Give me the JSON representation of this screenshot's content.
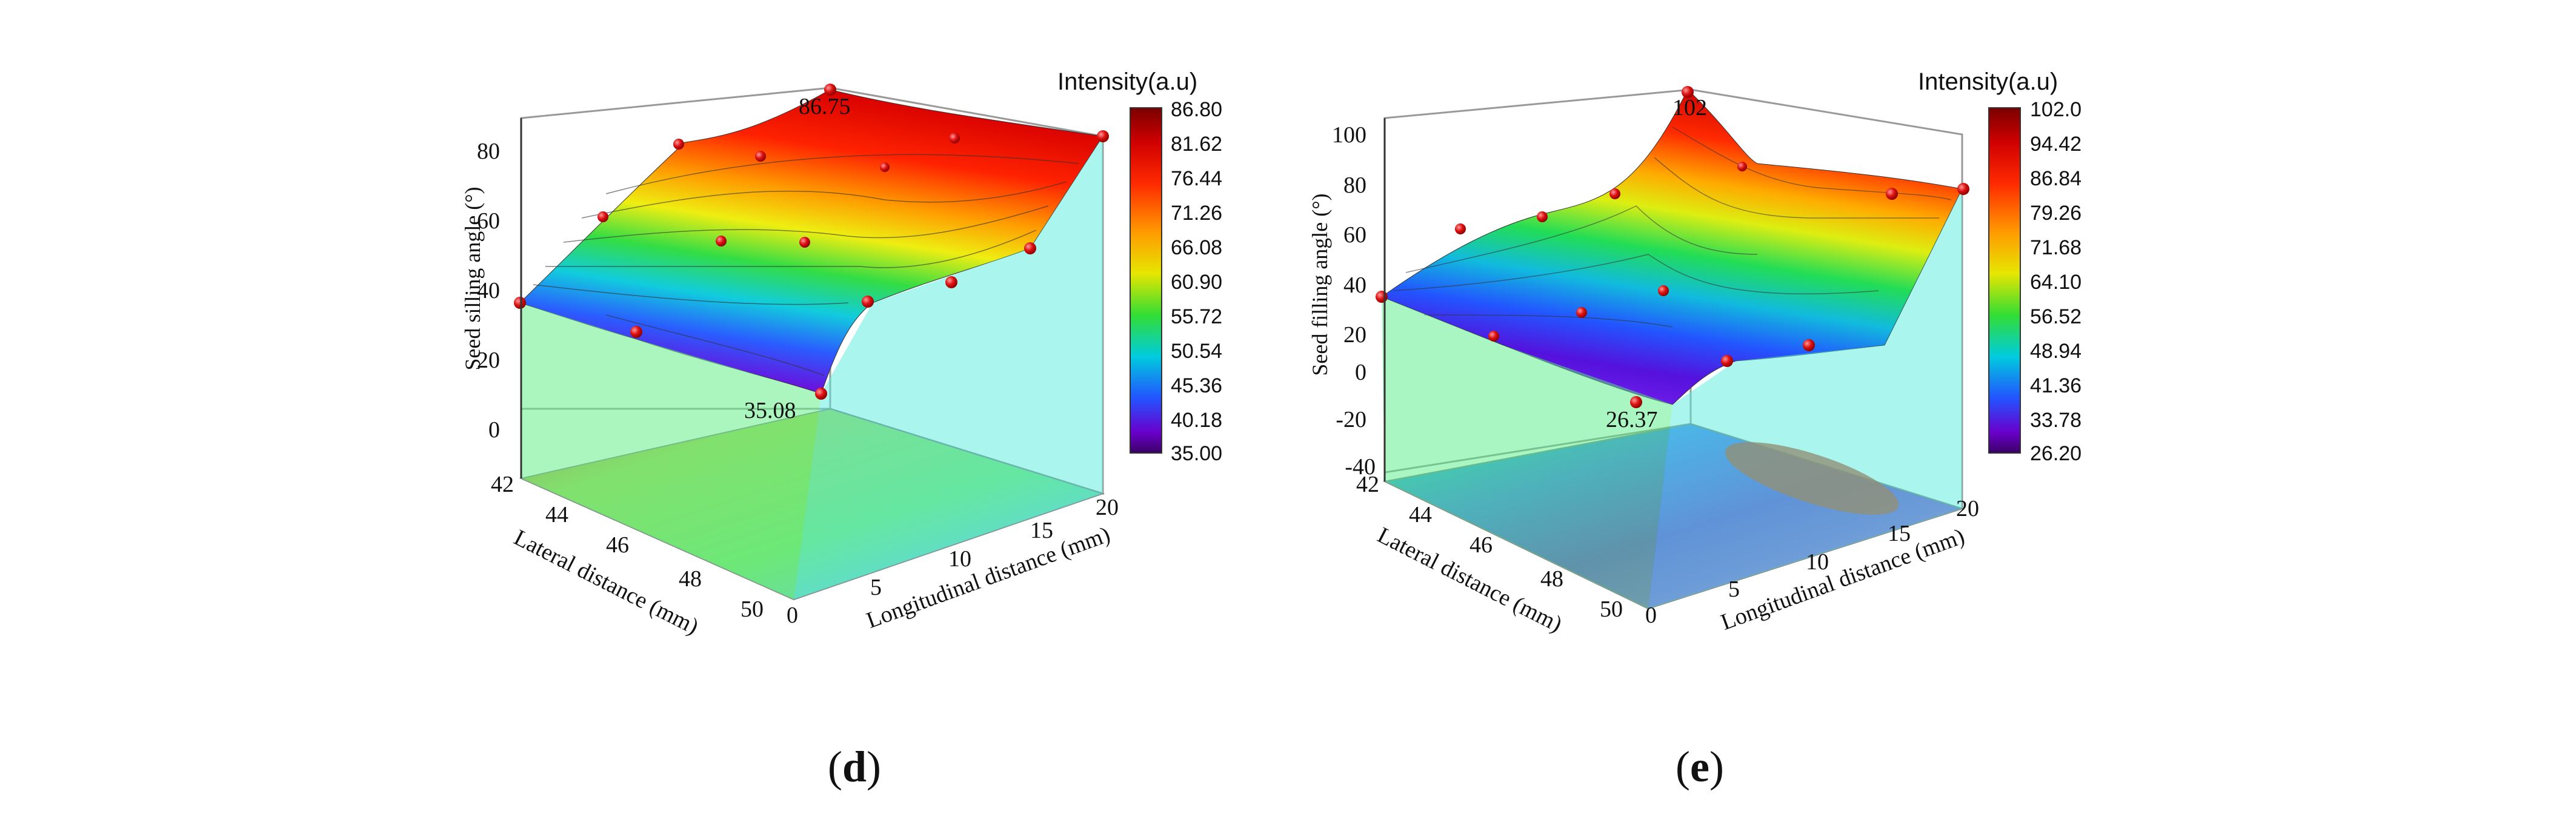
{
  "chart_data": [
    {
      "type": "surface3d",
      "panel_label": "d",
      "colorbar": {
        "title": "Intensity(a.u)",
        "ticks": [
          "86.80",
          "81.62",
          "76.44",
          "71.26",
          "66.08",
          "60.90",
          "55.72",
          "50.54",
          "45.36",
          "40.18",
          "35.00"
        ],
        "range": [
          35.0,
          86.8
        ]
      },
      "zlabel": "Seed silling angle (°)",
      "xlabel": "Longitudinal distance (mm)",
      "ylabel": "Lateral distance (mm)",
      "z_ticks": [
        "80",
        "60",
        "40",
        "20",
        "0"
      ],
      "x_ticks": [
        "0",
        "5",
        "10",
        "15",
        "20"
      ],
      "y_ticks": [
        "42",
        "44",
        "46",
        "48",
        "50"
      ],
      "annotations": [
        "86.75",
        "35.08"
      ],
      "max_value": 86.75,
      "min_value": 35.08
    },
    {
      "type": "surface3d",
      "panel_label": "e",
      "colorbar": {
        "title": "Intensity(a.u)",
        "ticks": [
          "102.0",
          "94.42",
          "86.84",
          "79.26",
          "71.68",
          "64.10",
          "56.52",
          "48.94",
          "41.36",
          "33.78",
          "26.20"
        ],
        "range": [
          26.2,
          102.0
        ]
      },
      "zlabel": "Seed filling angle (°)",
      "xlabel": "Longitudinal distance (mm)",
      "ylabel": "Lateral distance (mm)",
      "z_ticks": [
        "100",
        "80",
        "60",
        "40",
        "20",
        "0",
        "-20",
        "-40"
      ],
      "x_ticks": [
        "0",
        "5",
        "10",
        "15",
        "20"
      ],
      "y_ticks": [
        "42",
        "44",
        "46",
        "48",
        "50"
      ],
      "annotations": [
        "102",
        "26.37"
      ],
      "max_value": 102,
      "min_value": 26.37
    }
  ]
}
